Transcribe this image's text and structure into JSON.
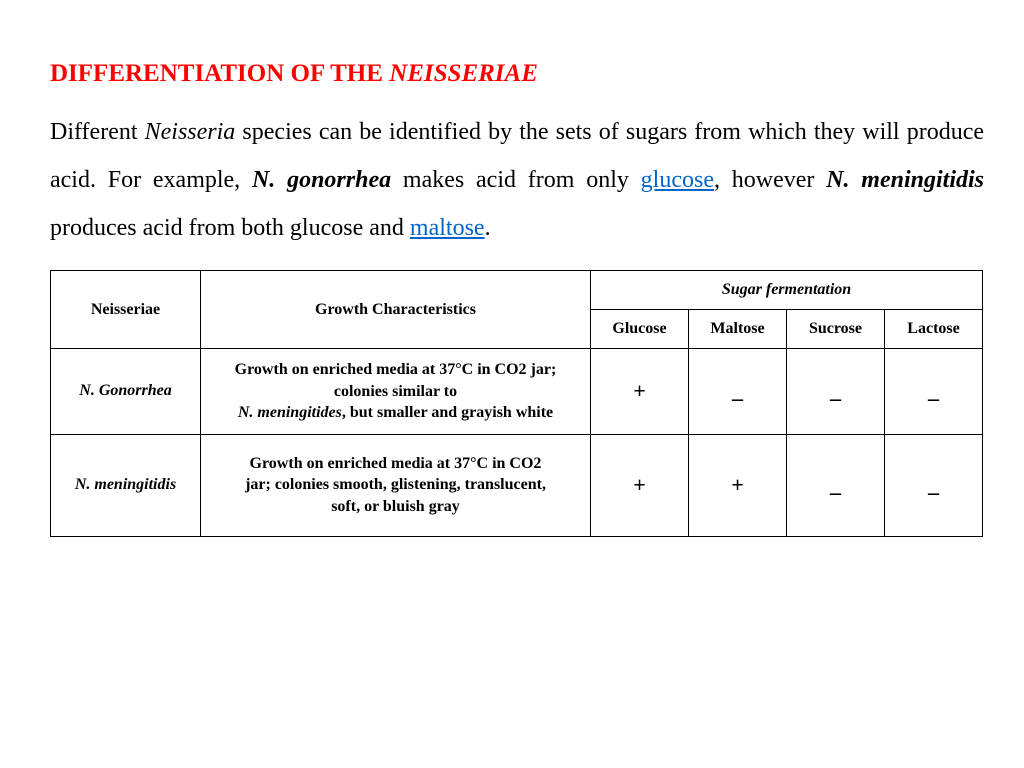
{
  "title": {
    "prefix": "DIFFERENTIATION OF THE ",
    "genus": "NEISSERIAE"
  },
  "para": {
    "t1": "Different ",
    "genus": "Neisseria",
    "t2": " species can be identified by the sets of sugars from which they will produce acid. For example, ",
    "sp1": "N. gonorrhea",
    "t3": " makes acid from only ",
    "link1": "glucose",
    "t4": ", however ",
    "sp2": "N. meningitidis",
    "t5": " produces acid from both glucose and ",
    "link2": "maltose",
    "t6": "."
  },
  "headers": {
    "neisseriae": "Neisseriae",
    "growth": "Growth Characteristics",
    "sugar_group": "Sugar fermentation",
    "sugars": {
      "glucose": "Glucose",
      "maltose": "Maltose",
      "sucrose": "Sucrose",
      "lactose": "Lactose"
    }
  },
  "rows": {
    "r0": {
      "name": "N. Gonorrhea",
      "growth_a": "Growth on enriched media at 37°C in CO2 jar;",
      "growth_b": "colonies similar to",
      "growth_sp": "N. meningitides",
      "growth_c": ", but smaller and grayish white",
      "glucose": "+",
      "maltose": "_",
      "sucrose": "_",
      "lactose": "_"
    },
    "r1": {
      "name": "N. meningitidis",
      "growth_a": "Growth on enriched media at 37°C in CO2 jar; colonies smooth, glistening, translucent, soft, or bluish gray",
      "glucose": "+",
      "maltose": "+",
      "sucrose": "_",
      "lactose": "_"
    }
  }
}
